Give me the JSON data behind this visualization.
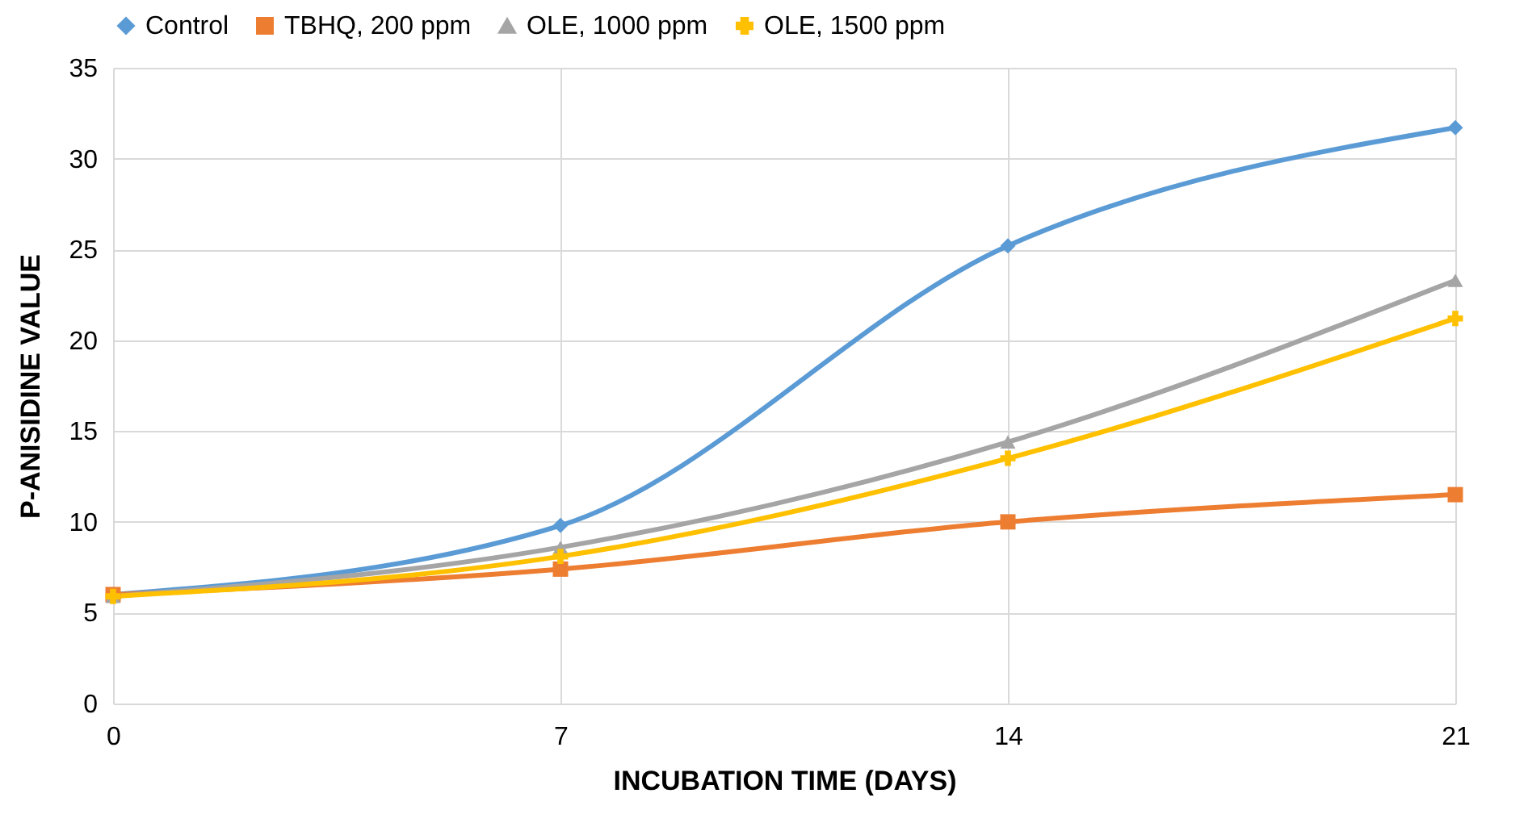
{
  "chart_data": {
    "type": "line",
    "xlabel": "INCUBATION TIME (DAYS)",
    "ylabel": "P-ANISIDINE VALUE",
    "x": [
      0,
      7,
      14,
      21
    ],
    "xlim": [
      0,
      21
    ],
    "xticks": [
      0,
      7,
      14,
      21
    ],
    "ylim": [
      0,
      35
    ],
    "yticks": [
      0,
      5,
      10,
      15,
      20,
      25,
      30,
      35
    ],
    "grid": true,
    "legend": "top",
    "line_style": "solid",
    "series": [
      {
        "name": "Control",
        "color": "#5b9bd5",
        "marker": "diamond",
        "values": [
          6.0,
          9.8,
          25.2,
          31.7
        ]
      },
      {
        "name": "TBHQ, 200 ppm",
        "color": "#ed7d31",
        "marker": "square",
        "values": [
          6.0,
          7.4,
          10.0,
          11.5
        ]
      },
      {
        "name": "OLE, 1000 ppm",
        "color": "#a5a5a5",
        "marker": "triangle",
        "values": [
          5.9,
          8.6,
          14.4,
          23.3
        ]
      },
      {
        "name": "OLE, 1500 ppm",
        "color": "#ffc000",
        "marker": "cross",
        "values": [
          5.9,
          8.1,
          13.5,
          21.2
        ]
      }
    ]
  }
}
